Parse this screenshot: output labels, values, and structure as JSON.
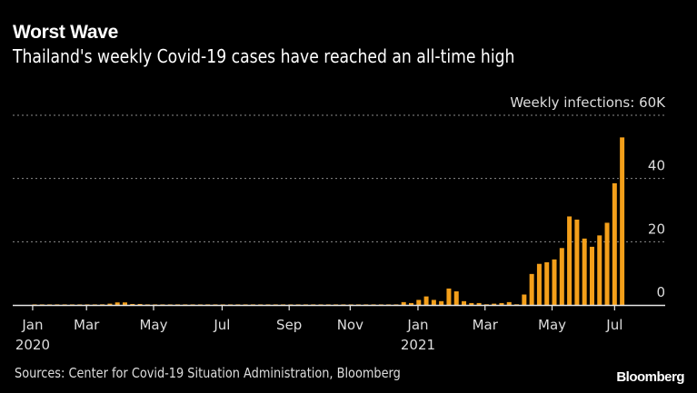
{
  "header": {
    "title": "Worst Wave",
    "subtitle": "Thailand's weekly Covid-19 cases have reached an all-time high"
  },
  "footer": {
    "source": "Sources: Center for Covid-19 Situation Administration, Bloomberg",
    "logo": "Bloomberg"
  },
  "chart_data": {
    "type": "bar",
    "title": "Worst Wave",
    "subtitle": "Thailand's weekly Covid-19 cases have reached an all-time high",
    "ylabel": "Weekly infections",
    "y_unit_label": "Weekly infections: 60K",
    "ylim": [
      0,
      60
    ],
    "y_ticks": [
      {
        "value": 0,
        "label": "0"
      },
      {
        "value": 20,
        "label": "20"
      },
      {
        "value": 40,
        "label": "40"
      },
      {
        "value": 60,
        "label": "Weekly infections: 60K"
      }
    ],
    "y_axis_position": "right",
    "grid": true,
    "bar_color": "#F39F1A",
    "x_ticks": [
      {
        "label": "Jan",
        "sublabel": "2020",
        "week_index": -0.25
      },
      {
        "label": "Mar",
        "sublabel": "",
        "week_index": 6.9
      },
      {
        "label": "May",
        "sublabel": "",
        "week_index": 15.8
      },
      {
        "label": "Jul",
        "sublabel": "",
        "week_index": 24.9
      },
      {
        "label": "Sep",
        "sublabel": "",
        "week_index": 33.8
      },
      {
        "label": "Nov",
        "sublabel": "",
        "week_index": 41.9
      },
      {
        "label": "Jan",
        "sublabel": "2021",
        "week_index": 50.9
      },
      {
        "label": "Mar",
        "sublabel": "",
        "week_index": 59.8
      },
      {
        "label": "May",
        "sublabel": "",
        "week_index": 68.7
      },
      {
        "label": "Jul",
        "sublabel": "",
        "week_index": 77.0
      }
    ],
    "x_range_weeks": [
      -0.5,
      84
    ],
    "values_unit": "thousands of cases",
    "values": [
      0.05,
      0.05,
      0.05,
      0.05,
      0.05,
      0.05,
      0.05,
      0.1,
      0.1,
      0.2,
      0.4,
      0.8,
      0.8,
      0.3,
      0.3,
      0.1,
      0.05,
      0.05,
      0.05,
      0.05,
      0.05,
      0.05,
      0.05,
      0.05,
      0.05,
      0.05,
      0.05,
      0.05,
      0.05,
      0.05,
      0.05,
      0.05,
      0.05,
      0.05,
      0.05,
      0.05,
      0.05,
      0.05,
      0.05,
      0.05,
      0.05,
      0.05,
      0.05,
      0.05,
      0.05,
      0.05,
      0.05,
      0.05,
      0.1,
      0.9,
      0.6,
      1.6,
      2.7,
      1.6,
      1.2,
      5.2,
      4.3,
      1.2,
      0.6,
      0.6,
      0.2,
      0.4,
      0.6,
      0.9,
      0.2,
      3.3,
      9.8,
      13.0,
      13.5,
      14.4,
      18.0,
      28.0,
      27.0,
      21.0,
      18.4,
      22.0,
      26.0,
      38.5,
      53.0
    ]
  }
}
